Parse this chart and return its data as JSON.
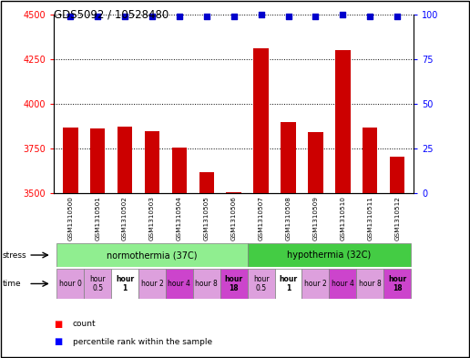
{
  "title": "GDS5092 / 10528480",
  "samples": [
    "GSM1310500",
    "GSM1310501",
    "GSM1310502",
    "GSM1310503",
    "GSM1310504",
    "GSM1310505",
    "GSM1310506",
    "GSM1310507",
    "GSM1310508",
    "GSM1310509",
    "GSM1310510",
    "GSM1310511",
    "GSM1310512"
  ],
  "counts": [
    3870,
    3860,
    3875,
    3845,
    3755,
    3620,
    3505,
    4310,
    3900,
    3840,
    4300,
    3865,
    3705
  ],
  "percentiles": [
    99,
    99,
    99,
    99,
    99,
    99,
    99,
    100,
    99,
    99,
    100,
    99,
    99
  ],
  "ylim_left": [
    3500,
    4500
  ],
  "ylim_right": [
    0,
    100
  ],
  "yticks_left": [
    3500,
    3750,
    4000,
    4250,
    4500
  ],
  "yticks_right": [
    0,
    25,
    50,
    75,
    100
  ],
  "bar_color": "#cc0000",
  "dot_color": "#0000cc",
  "bar_width": 0.55,
  "normothermia_color": "#90ee90",
  "hypothermia_color": "#44cc44",
  "time_labels": [
    "hour 0",
    "hour\n0.5",
    "hour\n1",
    "hour 2",
    "hour 4",
    "hour 8",
    "hour\n18",
    "hour\n0.5",
    "hour\n1",
    "hour 2",
    "hour 4",
    "hour 8",
    "hour\n18"
  ],
  "time_bg_colors": [
    "#dda0dd",
    "#dda0dd",
    "#ffffff",
    "#dda0dd",
    "#cc44cc",
    "#dda0dd",
    "#cc44cc",
    "#dda0dd",
    "#ffffff",
    "#dda0dd",
    "#cc44cc",
    "#dda0dd",
    "#cc44cc"
  ],
  "legend_count_label": "count",
  "legend_pct_label": "percentile rank within the sample"
}
